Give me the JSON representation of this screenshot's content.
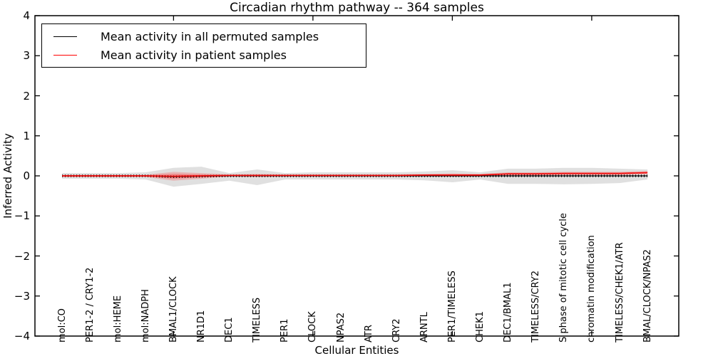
{
  "title": "Circadian rhythm pathway -- 364 samples",
  "axes": {
    "xlabel": "Cellular Entities",
    "ylabel": "Inferred Activity",
    "yticklabels": [
      "4",
      "3",
      "2",
      "1",
      "0",
      "−1",
      "−2",
      "−3",
      "−4"
    ]
  },
  "legend": [
    {
      "label": "Mean activity in all permuted samples",
      "color": "#000000"
    },
    {
      "label": "Mean activity in patient samples",
      "color": "#ff0000"
    }
  ],
  "colors": {
    "permuted_line": "#000000",
    "patient_line": "#f01010",
    "permuted_band": "#bbbbbb",
    "patient_band": "#ff2020",
    "axis": "#000000",
    "background": "#ffffff"
  },
  "chart_data": {
    "type": "line",
    "title": "Circadian rhythm pathway -- 364 samples",
    "xlabel": "Cellular Entities",
    "ylabel": "Inferred Activity",
    "ylim": [
      -4,
      4
    ],
    "yticks": [
      4,
      3,
      2,
      1,
      0,
      -1,
      -2,
      -3,
      -4
    ],
    "grid": false,
    "legend_position": "upper left",
    "categories": [
      "mol:CO",
      "PER1-2 / CRY1-2",
      "mol:HEME",
      "mol:NADPH",
      "BMAL1/CLOCK",
      "NR1D1",
      "DEC1",
      "TIMELESS",
      "PER1",
      "CLOCK",
      "NPAS2",
      "ATR",
      "CRY2",
      "ARNTL",
      "PER1/TIMELESS",
      "CHEK1",
      "DEC1/BMAL1",
      "TIMELESS/CRY2",
      "S phase of mitotic cell cycle",
      "chromatin modification",
      "TIMELESS/CHEK1/ATR",
      "BMAL/CLOCK/NPAS2"
    ],
    "xtick_major_indices": [
      4,
      9,
      14,
      19
    ],
    "series": [
      {
        "name": "Mean activity in all permuted samples",
        "color": "#000000",
        "values": [
          0,
          0,
          0,
          0,
          -0.02,
          -0.01,
          0,
          0,
          0,
          0,
          0,
          0,
          0,
          0,
          0,
          0,
          0,
          0,
          0,
          0,
          0,
          0
        ]
      },
      {
        "name": "Mean activity in patient samples",
        "color": "#f01010",
        "values": [
          0,
          0,
          0,
          0,
          -0.01,
          0,
          0.01,
          0.01,
          0.01,
          0.01,
          0.01,
          0.01,
          0.01,
          0.02,
          0.02,
          0.02,
          0.05,
          0.05,
          0.06,
          0.06,
          0.06,
          0.08
        ]
      }
    ],
    "bands": [
      {
        "name": "permuted-activity-envelope",
        "color": "#bbbbbb",
        "opacity": 0.45,
        "upper": [
          0.07,
          0.07,
          0.07,
          0.09,
          0.2,
          0.23,
          0.07,
          0.16,
          0.07,
          0.09,
          0.09,
          0.09,
          0.09,
          0.11,
          0.14,
          0.09,
          0.18,
          0.18,
          0.2,
          0.2,
          0.18,
          0.16
        ],
        "lower": [
          -0.07,
          -0.07,
          -0.07,
          -0.09,
          -0.27,
          -0.2,
          -0.12,
          -0.23,
          -0.09,
          -0.09,
          -0.09,
          -0.09,
          -0.09,
          -0.11,
          -0.16,
          -0.09,
          -0.2,
          -0.2,
          -0.21,
          -0.2,
          -0.18,
          -0.09
        ]
      },
      {
        "name": "patient-activity-envelope",
        "color": "#ff2020",
        "opacity": 0.22,
        "upper": [
          0.03,
          0.03,
          0.03,
          0.03,
          0.1,
          0.07,
          0.04,
          0.05,
          0.04,
          0.04,
          0.04,
          0.04,
          0.04,
          0.05,
          0.06,
          0.05,
          0.09,
          0.09,
          0.1,
          0.1,
          0.1,
          0.12
        ],
        "lower": [
          -0.03,
          -0.03,
          -0.03,
          -0.03,
          -0.12,
          -0.07,
          -0.02,
          -0.03,
          -0.02,
          -0.02,
          -0.02,
          -0.02,
          -0.02,
          -0.01,
          -0.02,
          -0.01,
          0.01,
          0.01,
          0.02,
          0.02,
          0.02,
          0.04
        ]
      }
    ]
  }
}
